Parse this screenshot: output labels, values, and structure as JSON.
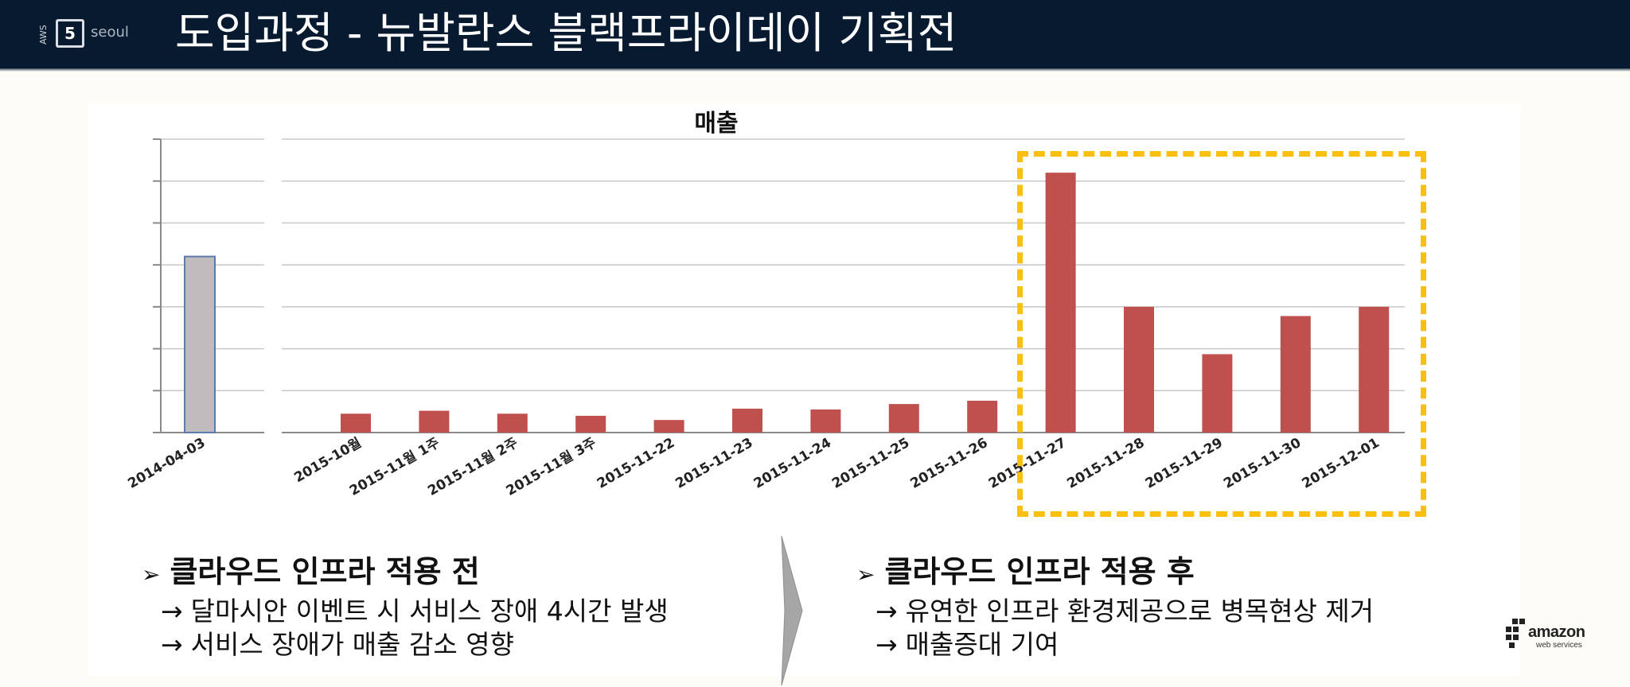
{
  "header": {
    "logo": {
      "vertical_text": "AWS",
      "badge": "5",
      "city": "seoul"
    },
    "title": "도입과정 - 뉴발란스 블랙프라이데이 기획전"
  },
  "chart_data": {
    "type": "bar",
    "title": "매출",
    "xlabel": "",
    "ylabel": "",
    "ylim": [
      0,
      7
    ],
    "grid": true,
    "legend": "none",
    "ytick_labels_shown": false,
    "categories": [
      "2014-04-03",
      "2015-10월",
      "2015-11월 1주",
      "2015-11월 2주",
      "2015-11월 3주",
      "2015-11-22",
      "2015-11-23",
      "2015-11-24",
      "2015-11-25",
      "2015-11-26",
      "2015-11-27",
      "2015-11-28",
      "2015-11-29",
      "2015-11-30",
      "2015-12-01"
    ],
    "values": [
      4.2,
      0.45,
      0.52,
      0.45,
      0.4,
      0.3,
      0.57,
      0.55,
      0.68,
      0.76,
      6.2,
      3.0,
      1.87,
      2.78,
      3.0
    ],
    "colors": [
      "#c0bcbd",
      "#c0504d",
      "#c0504d",
      "#c0504d",
      "#c0504d",
      "#c0504d",
      "#c0504d",
      "#c0504d",
      "#c0504d",
      "#c0504d",
      "#c0504d",
      "#c0504d",
      "#c0504d",
      "#c0504d",
      "#c0504d"
    ],
    "highlight_range": [
      "2015-11-27",
      "2015-12-01"
    ],
    "highlight_color": "#fbbf10"
  },
  "notes_before": {
    "heading": "클라우드 인프라 적용 전",
    "arrow": "→",
    "lines": [
      "달마시안 이벤트 시 서비스 장애 4시간 발생",
      "서비스 장애가 매출 감소 영향"
    ]
  },
  "notes_after": {
    "heading": "클라우드 인프라 적용 후",
    "arrow": "→",
    "lines": [
      "유연한 인프라 환경제공으로 병목현상 제거",
      "매출증대 기여"
    ]
  },
  "footer_logo": {
    "word": "amazon",
    "sub": "web services"
  }
}
